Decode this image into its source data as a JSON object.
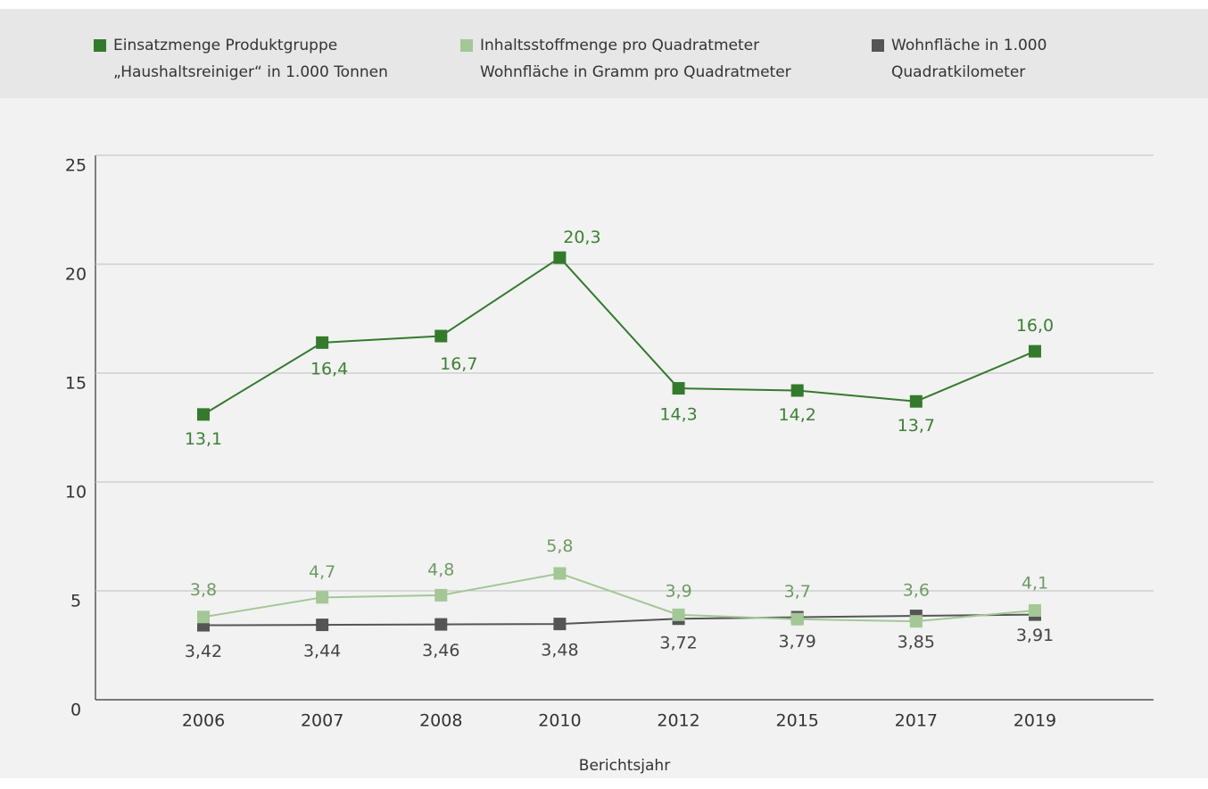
{
  "chart_data": {
    "type": "line",
    "categories": [
      "2006",
      "2007",
      "2008",
      "2010",
      "2012",
      "2015",
      "2017",
      "2019"
    ],
    "series": [
      {
        "name": "Einsatzmenge Produktgruppe „Haushaltsreiniger“ in 1.000 Tonnen",
        "color": "#347a2c",
        "label_color": "#3d8034",
        "values": [
          13.1,
          16.4,
          16.7,
          20.3,
          14.3,
          14.2,
          13.7,
          16.0
        ],
        "value_labels": [
          "13,1",
          "16,4",
          "16,7",
          "20,3",
          "14,3",
          "14,2",
          "13,7",
          "16,0"
        ]
      },
      {
        "name": "Inhaltsstoffmenge pro Quadratmeter Wohnfläche in Gramm pro Quadratmeter",
        "color": "#a3c796",
        "label_color": "#6e9c61",
        "values": [
          3.8,
          4.7,
          4.8,
          5.8,
          3.9,
          3.7,
          3.6,
          4.1
        ],
        "value_labels": [
          "3,8",
          "4,7",
          "4,8",
          "5,8",
          "3,9",
          "3,7",
          "3,6",
          "4,1"
        ]
      },
      {
        "name": "Wohnfläche in 1.000 Quadratkilometer",
        "color": "#555555",
        "label_color": "#444444",
        "values": [
          3.42,
          3.44,
          3.46,
          3.48,
          3.72,
          3.79,
          3.85,
          3.91
        ],
        "value_labels": [
          "3,42",
          "3,44",
          "3,46",
          "3,48",
          "3,72",
          "3,79",
          "3,85",
          "3,91"
        ]
      }
    ],
    "xlabel": "Berichtsjahr",
    "ylim": [
      0,
      25
    ],
    "yticks": [
      0,
      5,
      10,
      15,
      20,
      25
    ],
    "grid": true,
    "legend": "top"
  }
}
